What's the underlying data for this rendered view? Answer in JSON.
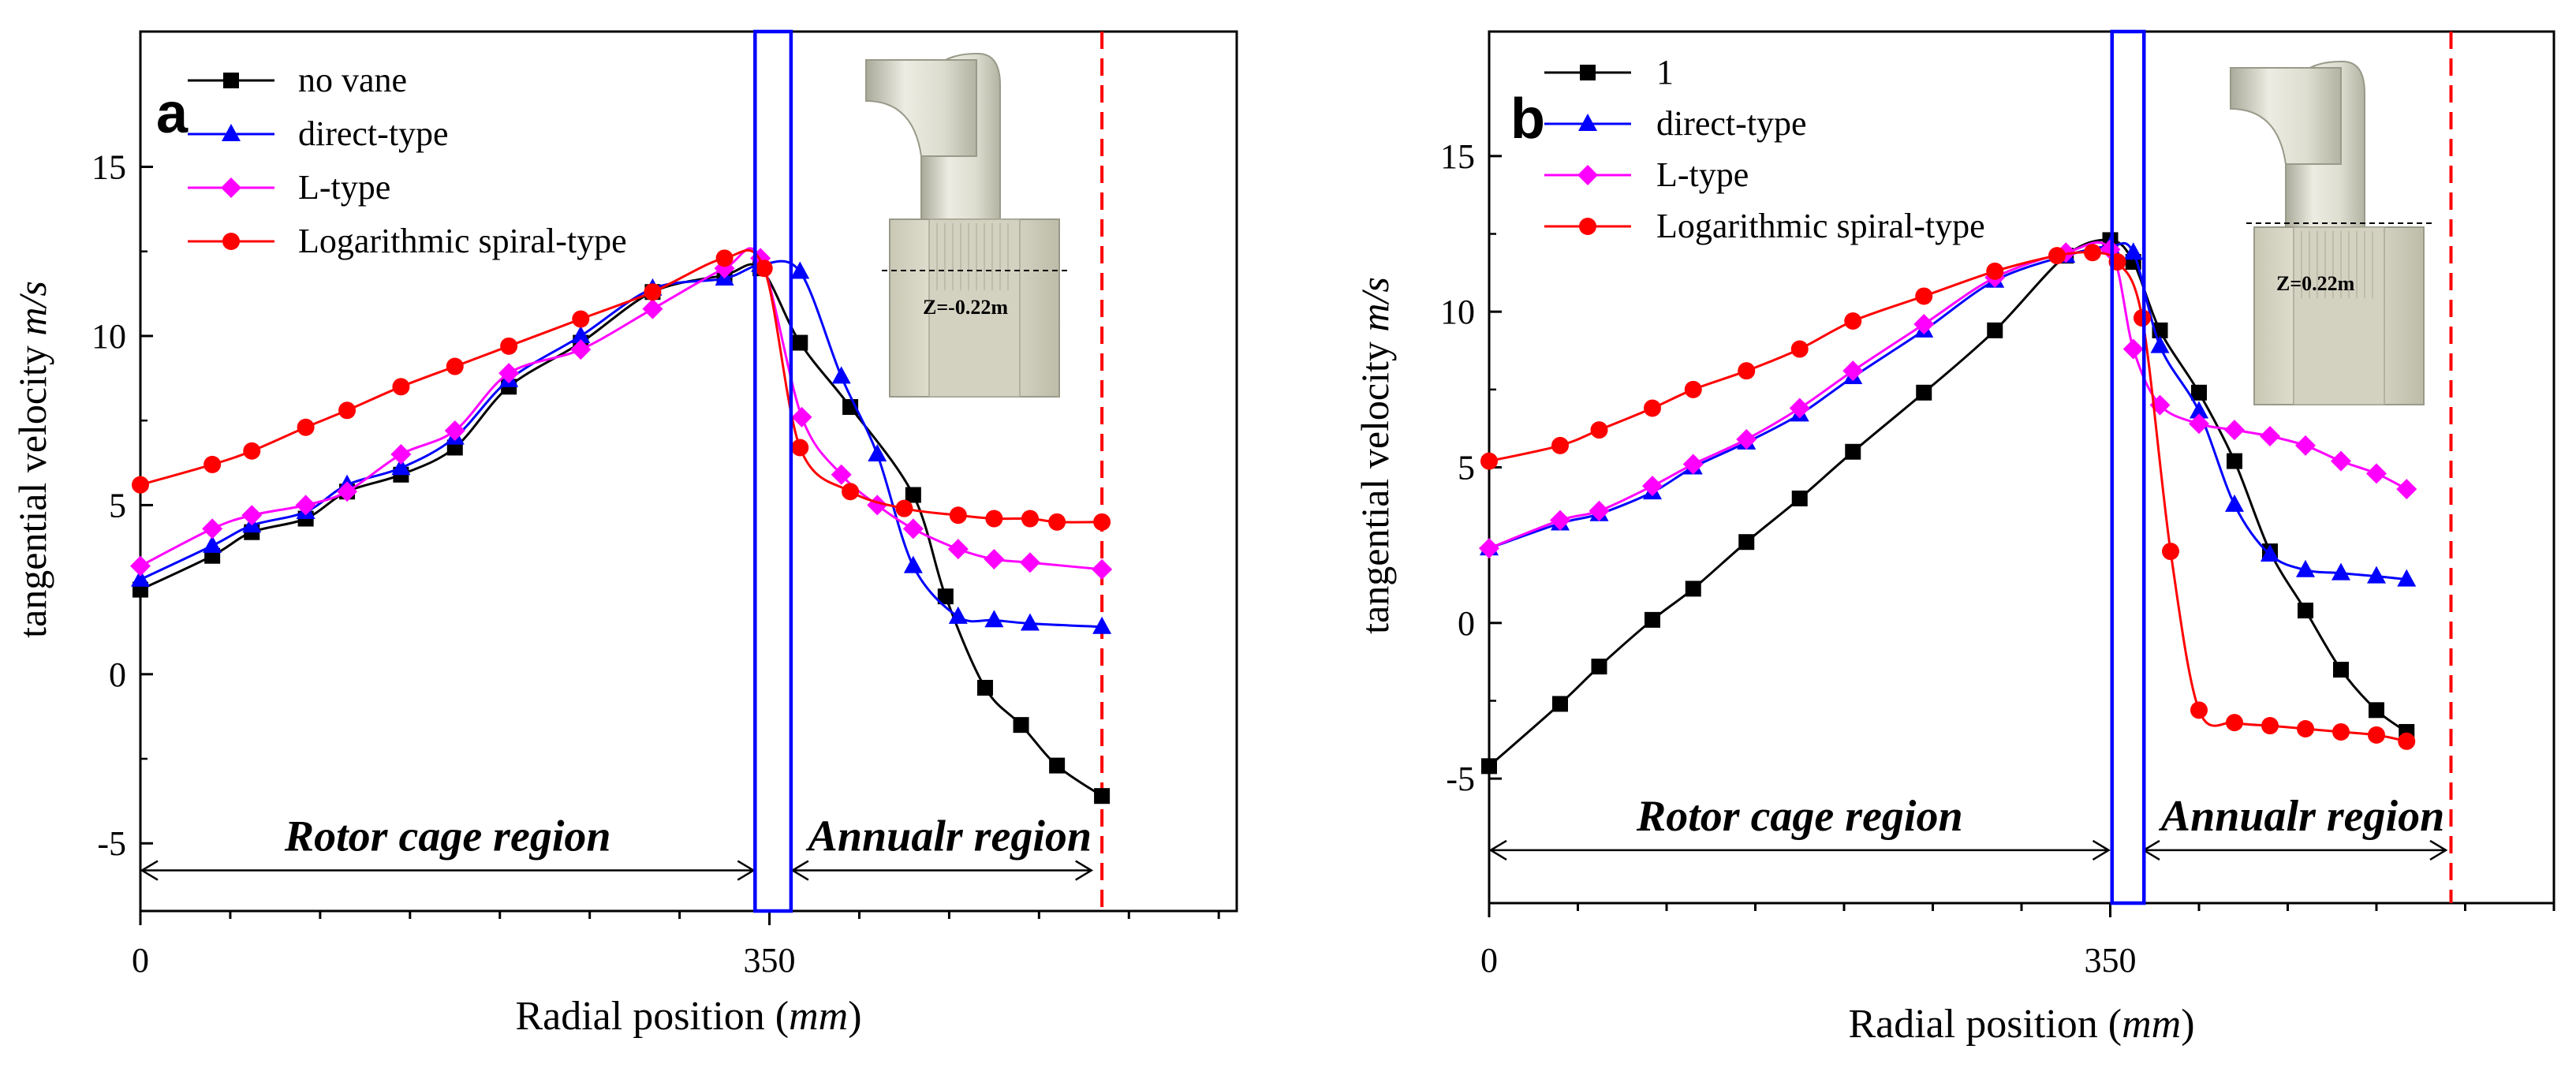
{
  "chart_data": [
    {
      "type": "line",
      "panel_label": "a",
      "xlabel_main": "Radial position (",
      "xlabel_unit": "mm",
      "xlabel_close": ")",
      "ylabel_main": "tangential velocity ",
      "ylabel_unit": "m/s",
      "xlim": [
        0,
        610
      ],
      "ylim": [
        -7,
        19
      ],
      "xticks": [
        0,
        350
      ],
      "xtick_labels": [
        "0",
        "350"
      ],
      "yticks": [
        -5,
        0,
        5,
        10,
        15
      ],
      "ytick_labels": [
        "-5",
        "0",
        "5",
        "10",
        "15"
      ],
      "region_left": "Rotor cage region",
      "region_right": "Annualr region",
      "arrow_left": [
        0,
        342
      ],
      "arrow_right": [
        362,
        530
      ],
      "arrow_y": -5.8,
      "blue_box": [
        342,
        362
      ],
      "red_dash_x": 535,
      "inset_caption": "Z=-0.22m",
      "legend_position": "top-left",
      "series": [
        {
          "name": "no vane",
          "color": "#000000",
          "marker": "square",
          "x": [
            0,
            40,
            62,
            92,
            115,
            145,
            175,
            205,
            245,
            285,
            325,
            345,
            367,
            395,
            430,
            448,
            470,
            490,
            510,
            535
          ],
          "y": [
            2.5,
            3.5,
            4.2,
            4.6,
            5.4,
            5.9,
            6.7,
            8.5,
            9.8,
            11.3,
            11.8,
            12.0,
            9.8,
            7.9,
            5.3,
            2.3,
            -0.4,
            -1.5,
            -2.7,
            -3.6
          ]
        },
        {
          "name": "direct-type",
          "color": "#0000ff",
          "marker": "triangle",
          "x": [
            0,
            40,
            62,
            92,
            115,
            145,
            175,
            205,
            245,
            285,
            325,
            345,
            367,
            390,
            410,
            430,
            455,
            475,
            495,
            535
          ],
          "y": [
            2.8,
            3.8,
            4.4,
            4.8,
            5.6,
            6.1,
            7.0,
            8.7,
            10.0,
            11.4,
            11.7,
            12.1,
            11.9,
            8.8,
            6.5,
            3.2,
            1.7,
            1.6,
            1.5,
            1.4
          ]
        },
        {
          "name": "L-type",
          "color": "#ff00ff",
          "marker": "diamond",
          "x": [
            0,
            40,
            62,
            92,
            115,
            145,
            175,
            205,
            245,
            285,
            325,
            345,
            368,
            390,
            410,
            430,
            455,
            475,
            495,
            535
          ],
          "y": [
            3.2,
            4.3,
            4.7,
            5.0,
            5.4,
            6.5,
            7.2,
            8.9,
            9.6,
            10.8,
            12.0,
            12.3,
            7.6,
            5.9,
            5.0,
            4.3,
            3.7,
            3.4,
            3.3,
            3.1
          ]
        },
        {
          "name": "Logarithmic spiral-type",
          "color": "#ff0000",
          "marker": "circle",
          "x": [
            0,
            40,
            62,
            92,
            115,
            145,
            175,
            205,
            245,
            285,
            325,
            347,
            367,
            395,
            425,
            455,
            475,
            495,
            510,
            535
          ],
          "y": [
            5.6,
            6.2,
            6.6,
            7.3,
            7.8,
            8.5,
            9.1,
            9.7,
            10.5,
            11.3,
            12.3,
            12.0,
            6.7,
            5.4,
            4.9,
            4.7,
            4.6,
            4.6,
            4.5,
            4.5
          ]
        }
      ]
    },
    {
      "type": "line",
      "panel_label": "b",
      "xlabel_main": "Radial position (",
      "xlabel_unit": "mm",
      "xlabel_close": ")",
      "ylabel_main": "tangential velocity ",
      "ylabel_unit": "m/s",
      "xlim": [
        0,
        600
      ],
      "ylim": [
        -9,
        19
      ],
      "xticks": [
        0,
        350
      ],
      "xtick_labels": [
        "0",
        "350"
      ],
      "yticks": [
        -5,
        0,
        5,
        10,
        15
      ],
      "ytick_labels": [
        "-5",
        "0",
        "5",
        "10",
        "15"
      ],
      "region_left": "Rotor cage region",
      "region_right": "Annualr region",
      "arrow_left": [
        0,
        350
      ],
      "arrow_right": [
        368,
        540
      ],
      "arrow_y": -7.3,
      "blue_box": [
        351,
        369
      ],
      "red_dash_x": 542,
      "inset_caption": "Z=0.22m",
      "legend_position": "top-left",
      "series": [
        {
          "name": "1",
          "color": "#000000",
          "marker": "square",
          "x": [
            0,
            40,
            62,
            92,
            115,
            145,
            175,
            205,
            245,
            285,
            325,
            350,
            363,
            378,
            400,
            420,
            440,
            460,
            480,
            500,
            517
          ],
          "y": [
            -4.6,
            -2.6,
            -1.4,
            0.1,
            1.1,
            2.6,
            4.0,
            5.5,
            7.4,
            9.4,
            11.8,
            12.3,
            11.6,
            9.4,
            7.4,
            5.2,
            2.3,
            0.4,
            -1.5,
            -2.8,
            -3.5
          ]
        },
        {
          "name": "direct-type",
          "color": "#0000ff",
          "marker": "triangle",
          "x": [
            0,
            40,
            62,
            92,
            115,
            145,
            175,
            205,
            245,
            285,
            325,
            350,
            363,
            378,
            400,
            420,
            440,
            460,
            480,
            500,
            517
          ],
          "y": [
            2.4,
            3.2,
            3.5,
            4.2,
            5.0,
            5.8,
            6.7,
            7.9,
            9.4,
            11.0,
            11.8,
            12.1,
            11.9,
            8.9,
            6.8,
            3.8,
            2.2,
            1.7,
            1.6,
            1.5,
            1.4
          ]
        },
        {
          "name": "L-type",
          "color": "#ff00ff",
          "marker": "diamond",
          "x": [
            0,
            40,
            62,
            92,
            115,
            145,
            175,
            205,
            245,
            285,
            325,
            350,
            363,
            378,
            400,
            420,
            440,
            460,
            480,
            500,
            517
          ],
          "y": [
            2.4,
            3.3,
            3.6,
            4.4,
            5.1,
            5.9,
            6.9,
            8.1,
            9.6,
            11.1,
            11.9,
            12.0,
            8.8,
            7.0,
            6.4,
            6.2,
            6.0,
            5.7,
            5.2,
            4.8,
            4.3
          ]
        },
        {
          "name": "Logarithmic spiral-type",
          "color": "#ff0000",
          "marker": "circle",
          "x": [
            0,
            40,
            62,
            92,
            115,
            145,
            175,
            205,
            245,
            285,
            320,
            340,
            354,
            368,
            384,
            400,
            420,
            440,
            460,
            480,
            500,
            517
          ],
          "y": [
            5.2,
            5.7,
            6.2,
            6.9,
            7.5,
            8.1,
            8.8,
            9.7,
            10.5,
            11.3,
            11.8,
            11.9,
            11.6,
            9.8,
            2.3,
            -2.8,
            -3.2,
            -3.3,
            -3.4,
            -3.5,
            -3.6,
            -3.8
          ]
        }
      ]
    }
  ]
}
